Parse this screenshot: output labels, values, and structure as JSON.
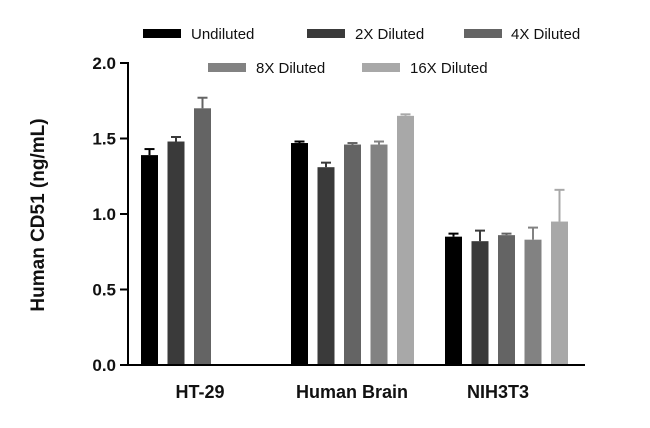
{
  "chart_data": {
    "type": "bar",
    "title": "",
    "xlabel": "",
    "ylabel": "Human CD51 (ng/mL)",
    "ylim": [
      0,
      2.0
    ],
    "yticks": [
      "0.0",
      "0.5",
      "1.0",
      "1.5",
      "2.0"
    ],
    "grid": false,
    "legend_position": "top",
    "categories": [
      "HT-29",
      "Human Brain",
      "NIH3T3"
    ],
    "series": [
      {
        "name": "Undiluted",
        "color": "#000000",
        "values": [
          1.39,
          1.47,
          0.85
        ],
        "errors": [
          0.04,
          0.01,
          0.02
        ]
      },
      {
        "name": "2X Diluted",
        "color": "#3a3a3a",
        "values": [
          1.48,
          1.31,
          0.82
        ],
        "errors": [
          0.03,
          0.03,
          0.07
        ]
      },
      {
        "name": "4X Diluted",
        "color": "#646464",
        "values": [
          1.7,
          1.46,
          0.86
        ],
        "errors": [
          0.07,
          0.01,
          0.01
        ]
      },
      {
        "name": "8X Diluted",
        "color": "#828282",
        "values": [
          null,
          1.46,
          0.83
        ],
        "errors": [
          null,
          0.02,
          0.08
        ]
      },
      {
        "name": "16X Diluted",
        "color": "#a8a8a8",
        "values": [
          null,
          1.65,
          0.95
        ],
        "errors": [
          null,
          0.01,
          0.21
        ]
      }
    ]
  }
}
